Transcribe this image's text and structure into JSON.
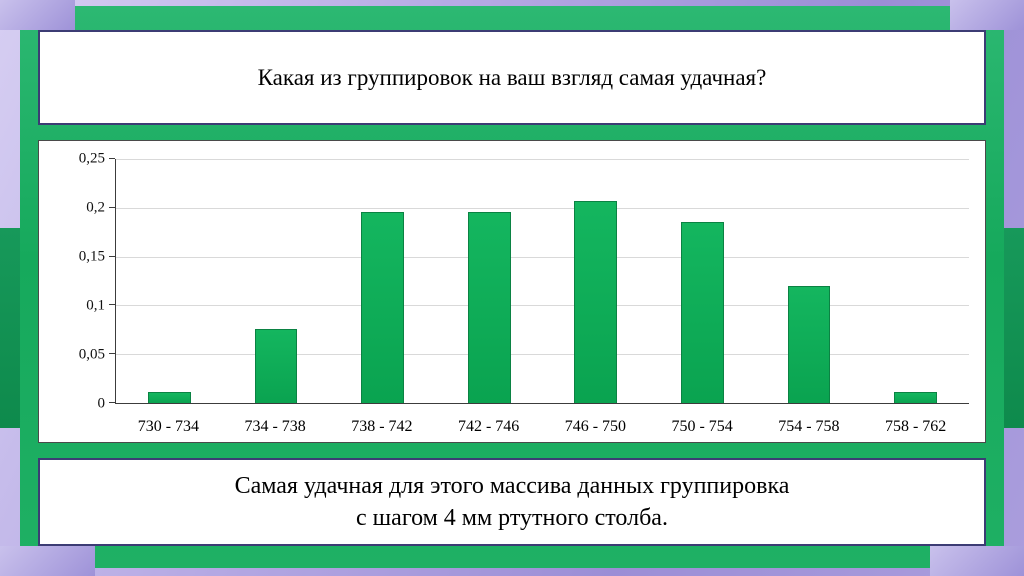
{
  "slide": {
    "title": "Какая из группировок на ваш взгляд самая удачная?",
    "caption_line1": "Самая удачная для этого массива данных группировка",
    "caption_line2": "с шагом 4 мм ртутного столба."
  },
  "colors": {
    "bar_green": "#0fb158",
    "bar_border": "#0b8243",
    "frame_green": "#1fb064",
    "background_purple": "#a99ddd",
    "panel_border": "#3c3c74"
  },
  "chart_data": {
    "type": "bar",
    "categories": [
      "730 - 734",
      "734 - 738",
      "738 - 742",
      "742 - 746",
      "746 - 750",
      "750 - 754",
      "754 - 758",
      "758 - 762"
    ],
    "values": [
      0.011,
      0.076,
      0.196,
      0.196,
      0.207,
      0.185,
      0.12,
      0.011
    ],
    "title": "",
    "xlabel": "",
    "ylabel": "",
    "ylim": [
      0,
      0.25
    ],
    "yticks": [
      "0",
      "0,05",
      "0,1",
      "0,15",
      "0,2",
      "0,25"
    ],
    "ytick_values": [
      0,
      0.05,
      0.1,
      0.15,
      0.2,
      0.25
    ],
    "grid": true,
    "legend": false
  }
}
